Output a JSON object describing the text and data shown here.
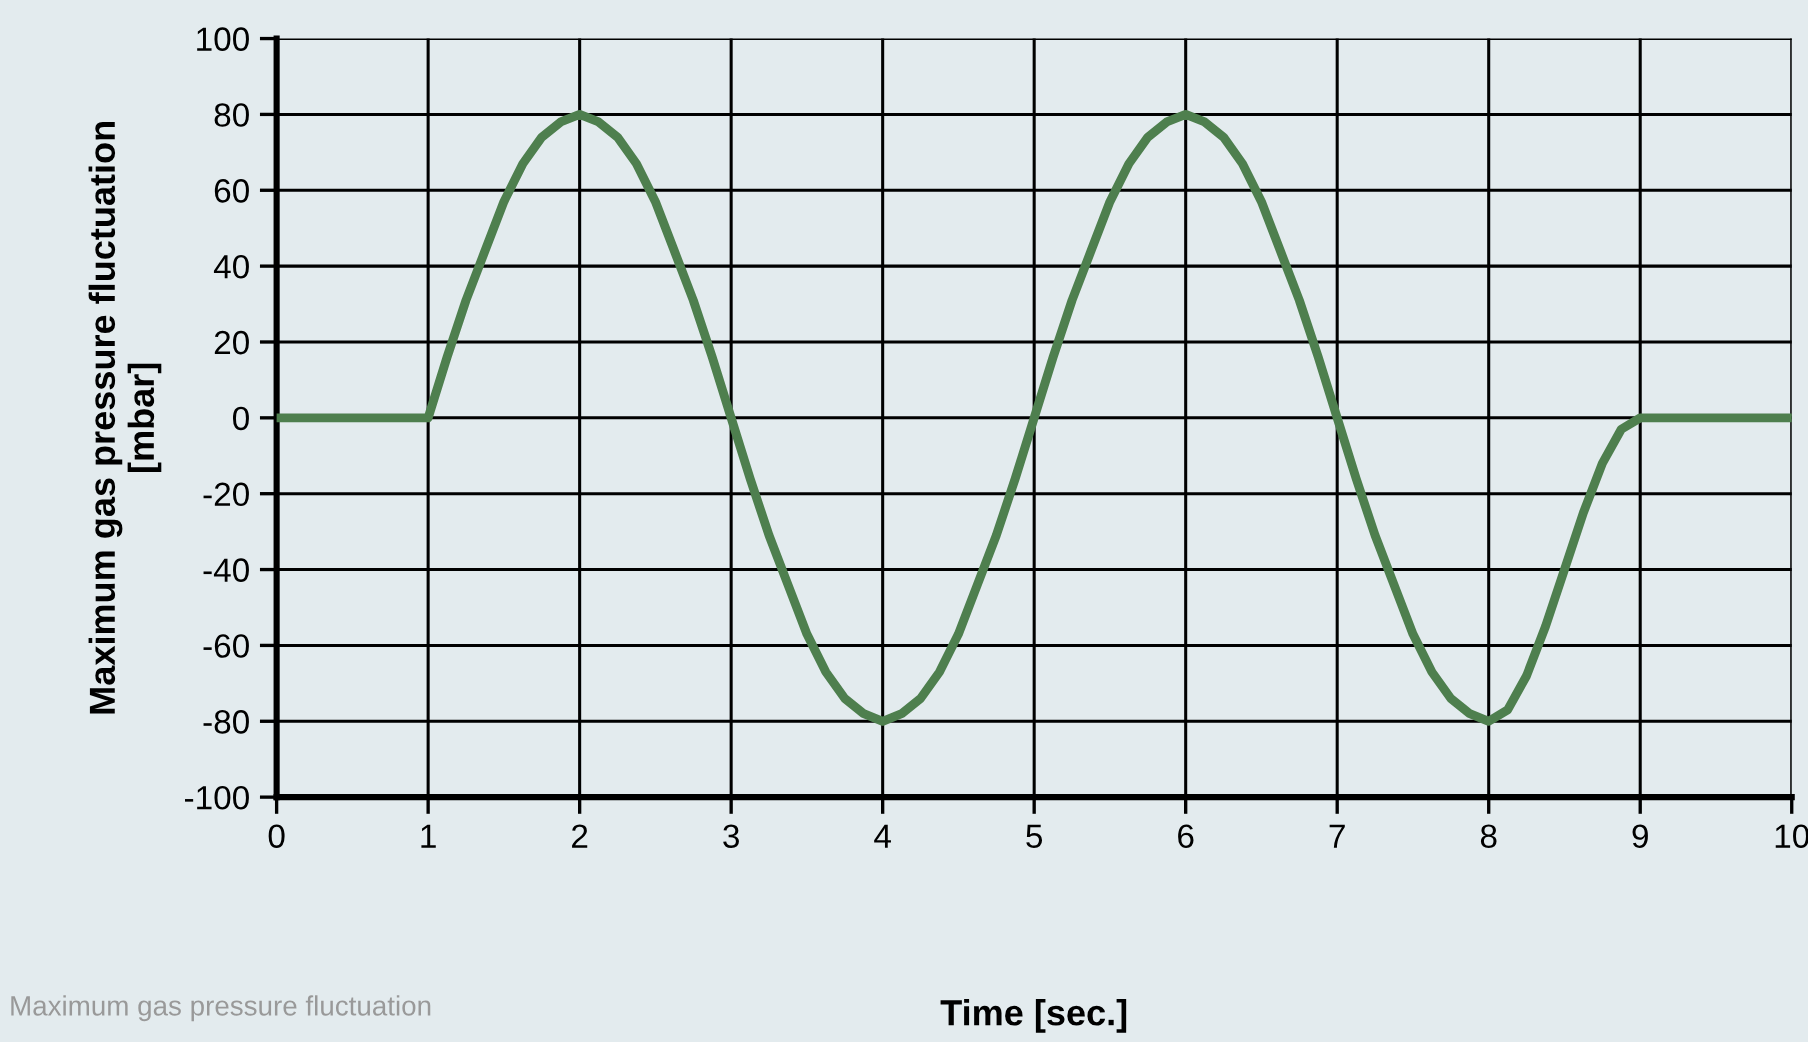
{
  "chart_data": {
    "type": "line",
    "xlabel": "Time [sec.]",
    "ylabel": "Maximum gas pressure fluctuation\n[mbar]",
    "annotations": [
      "Maximum gas pressure fluctuation"
    ],
    "x": [
      0,
      1,
      1.125,
      1.25,
      1.375,
      1.5,
      1.625,
      1.75,
      1.875,
      2,
      2.125,
      2.25,
      2.375,
      2.5,
      2.625,
      2.75,
      2.875,
      3,
      3.125,
      3.25,
      3.375,
      3.5,
      3.625,
      3.75,
      3.875,
      4,
      4.125,
      4.25,
      4.375,
      4.5,
      4.625,
      4.75,
      4.875,
      5,
      5.125,
      5.25,
      5.375,
      5.5,
      5.625,
      5.75,
      5.875,
      6,
      6.125,
      6.25,
      6.375,
      6.5,
      6.625,
      6.75,
      6.875,
      7,
      7.125,
      7.25,
      7.375,
      7.5,
      7.625,
      7.75,
      7.875,
      8,
      8.125,
      8.25,
      8.375,
      8.5,
      8.625,
      8.75,
      8.875,
      9,
      10
    ],
    "series": [
      {
        "color": "#4e7f4e",
        "values": [
          0,
          0,
          16,
          31,
          44,
          57,
          67,
          74,
          78,
          80,
          78,
          74,
          67,
          57,
          44,
          31,
          16,
          0,
          -16,
          -31,
          -44,
          -57,
          -67,
          -74,
          -78,
          -80,
          -78,
          -74,
          -67,
          -57,
          -44,
          -31,
          -16,
          0,
          16,
          31,
          44,
          57,
          67,
          74,
          78,
          80,
          78,
          74,
          67,
          57,
          44,
          31,
          16,
          0,
          -16,
          -31,
          -44,
          -57,
          -67,
          -74,
          -78,
          -80,
          -77,
          -68,
          -55,
          -40,
          -25,
          -12,
          -3,
          0,
          0
        ]
      }
    ],
    "xlim": [
      0,
      10
    ],
    "xticks": [
      0,
      1,
      2,
      3,
      4,
      5,
      6,
      7,
      8,
      9,
      10
    ],
    "ylim": [
      -100,
      100
    ],
    "yticks": [
      -100,
      -80,
      -60,
      -40,
      -20,
      0,
      20,
      40,
      60,
      80,
      100
    ],
    "grid": true,
    "marker": "none",
    "line_style": "solid",
    "legend": false
  }
}
